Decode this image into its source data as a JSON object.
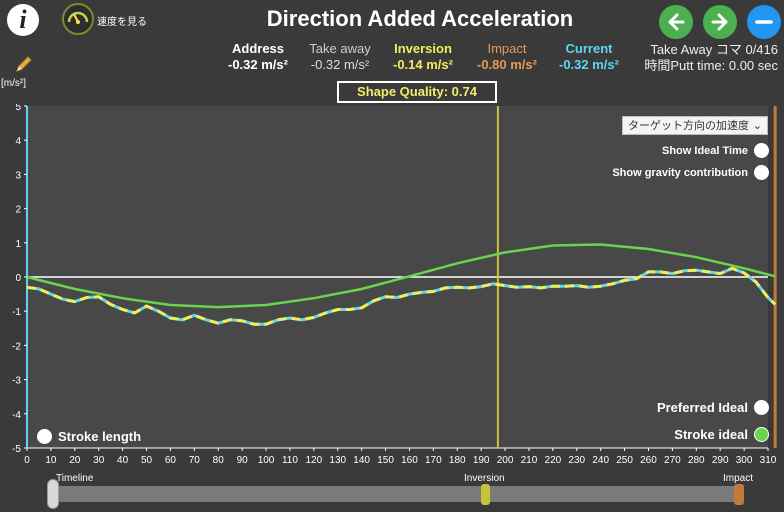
{
  "header": {
    "title": "Direction Added Acceleration",
    "speed_label": "速度を見る"
  },
  "stats": [
    {
      "label": "Address",
      "value": "-0.32 m/s²",
      "label_color": "#ffffff",
      "value_color": "#ffffff"
    },
    {
      "label": "Take away",
      "value": "-0.32 m/s²",
      "label_color": "#cfcfcf",
      "value_color": "#cfcfcf"
    },
    {
      "label": "Inversion",
      "value": "-0.14 m/s²",
      "label_color": "#f0ee5a",
      "value_color": "#f0ee5a"
    },
    {
      "label": "Impact",
      "value": "-0.80 m/s²",
      "label_color": "#e89a55",
      "value_color": "#e89a55"
    },
    {
      "label": "Current",
      "value": "-0.32 m/s²",
      "label_color": "#5fd6f0",
      "value_color": "#5fd6f0"
    }
  ],
  "frame_info": {
    "line1": "Take Away コマ 0/416",
    "line2": "時間Putt time: 0.00 sec"
  },
  "unit_label": "[m/s²]",
  "quality": "Shape Quality: 0.74",
  "dropdown": {
    "value": "ターゲット方向の加速度"
  },
  "toggles": {
    "show_ideal_time": "Show Ideal Time",
    "show_gravity": "Show gravity contribution",
    "preferred_ideal": "Preferred Ideal",
    "stroke_ideal": "Stroke ideal",
    "stroke_length": "Stroke length"
  },
  "timeline": {
    "label": "Timeline",
    "inversion": "Inversion",
    "impact": "Impact"
  },
  "colors": {
    "background": "#3a3a3a",
    "ideal": "#6ad44f",
    "current": "#5fd6f0",
    "measured": "#f0ee5a",
    "inversion_line": "#c8c43a",
    "impact_line": "#c07a3a"
  },
  "chart_data": {
    "type": "line",
    "xlim": [
      0,
      310
    ],
    "ylim": [
      -5,
      5
    ],
    "xticks": [
      0,
      10,
      20,
      30,
      40,
      50,
      60,
      70,
      80,
      90,
      100,
      110,
      120,
      130,
      140,
      150,
      160,
      170,
      180,
      190,
      200,
      210,
      220,
      230,
      240,
      250,
      260,
      270,
      280,
      290,
      300,
      310
    ],
    "yticks": [
      5,
      4,
      3,
      2,
      1,
      0,
      -1,
      -2,
      -3,
      -4,
      -5
    ],
    "inversion_x": 197,
    "impact_x": 313,
    "series": [
      {
        "role": "ideal",
        "x": [
          0,
          20,
          40,
          60,
          80,
          100,
          120,
          140,
          160,
          180,
          200,
          220,
          240,
          260,
          280,
          300,
          313
        ],
        "y": [
          0,
          -0.35,
          -0.62,
          -0.82,
          -0.88,
          -0.82,
          -0.62,
          -0.35,
          0.02,
          0.4,
          0.72,
          0.92,
          0.95,
          0.82,
          0.58,
          0.25,
          0.02
        ]
      },
      {
        "role": "measured",
        "x": [
          0,
          5,
          10,
          15,
          20,
          25,
          30,
          35,
          40,
          45,
          50,
          55,
          60,
          65,
          70,
          75,
          80,
          85,
          90,
          95,
          100,
          105,
          110,
          115,
          120,
          125,
          130,
          135,
          140,
          145,
          150,
          155,
          160,
          165,
          170,
          175,
          180,
          185,
          190,
          195,
          200,
          205,
          210,
          215,
          220,
          225,
          230,
          235,
          240,
          245,
          250,
          255,
          260,
          265,
          270,
          275,
          280,
          285,
          290,
          295,
          300,
          305,
          310,
          313
        ],
        "y": [
          -0.3,
          -0.35,
          -0.5,
          -0.65,
          -0.72,
          -0.6,
          -0.58,
          -0.8,
          -0.95,
          -1.05,
          -0.85,
          -1.0,
          -1.2,
          -1.25,
          -1.12,
          -1.25,
          -1.35,
          -1.25,
          -1.28,
          -1.38,
          -1.38,
          -1.25,
          -1.2,
          -1.25,
          -1.18,
          -1.05,
          -0.95,
          -0.95,
          -0.9,
          -0.7,
          -0.58,
          -0.6,
          -0.5,
          -0.45,
          -0.42,
          -0.32,
          -0.3,
          -0.32,
          -0.28,
          -0.2,
          -0.25,
          -0.3,
          -0.28,
          -0.32,
          -0.27,
          -0.27,
          -0.25,
          -0.3,
          -0.27,
          -0.2,
          -0.1,
          -0.05,
          0.15,
          0.15,
          0.1,
          0.18,
          0.2,
          0.15,
          0.1,
          0.25,
          0.12,
          -0.15,
          -0.6,
          -0.8
        ]
      }
    ]
  }
}
